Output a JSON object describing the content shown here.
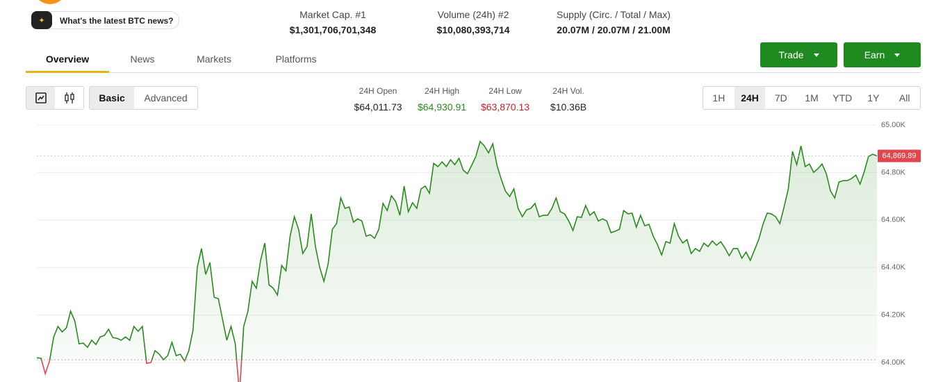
{
  "ask_prompt": "What's the latest BTC news?",
  "stats": [
    {
      "label": "Market Cap. #1",
      "value": "$1,301,706,701,348"
    },
    {
      "label": "Volume (24h) #2",
      "value": "$10,080,393,714"
    },
    {
      "label": "Supply (Circ. / Total / Max)",
      "value": "20.07M / 20.07M / 21.00M"
    }
  ],
  "tabs": [
    "Overview",
    "News",
    "Markets",
    "Platforms"
  ],
  "buttons": [
    "Trade",
    "Earn"
  ],
  "view_modes": [
    "Basic",
    "Advanced"
  ],
  "summary": [
    {
      "label": "24H Open",
      "value": 64011.73,
      "value_label": "$64,011.73"
    },
    {
      "label": "24H High",
      "value": 64930.91,
      "value_label": "$64,930.91"
    },
    {
      "label": "24H Low",
      "value": 63870.13,
      "value_label": "$63,870.13"
    },
    {
      "label": "24H Vol.",
      "value": 10360000000,
      "value_label": "$10.36B"
    }
  ],
  "ranges": [
    "1H",
    "24H",
    "7D",
    "1M",
    "YTD",
    "1Y",
    "All"
  ],
  "chart_data": {
    "type": "line",
    "color": "#2a8a1e",
    "down_color": "#e0464e",
    "ylim": [
      64000,
      65000
    ],
    "yticks": [
      {
        "value": 64000,
        "label": "64.00K"
      },
      {
        "value": 64200,
        "label": "64.20K"
      },
      {
        "value": 64400,
        "label": "64.40K"
      },
      {
        "value": 64600,
        "label": "64.60K"
      },
      {
        "value": 64800,
        "label": "64.80K"
      },
      {
        "value": 65000,
        "label": "65.00K"
      }
    ],
    "grid": true,
    "last_price": {
      "value": 64869.89,
      "label": "64,869.89"
    },
    "values": [
      64020,
      64018,
      63953,
      64006,
      64108,
      64152,
      64129,
      64146,
      64216,
      64175,
      64079,
      64082,
      64064,
      64094,
      64076,
      64108,
      64114,
      64140,
      64105,
      64102,
      64094,
      64108,
      64094,
      64152,
      64132,
      64152,
      63997,
      64000,
      64050,
      64035,
      64012,
      64029,
      64085,
      64029,
      64035,
      64006,
      64050,
      64137,
      64401,
      64480,
      64371,
      64421,
      64275,
      64269,
      64181,
      64094,
      64152,
      64079,
      63870.13,
      64152,
      64216,
      64342,
      64313,
      64430,
      64503,
      64327,
      64313,
      64284,
      64409,
      64386,
      64532,
      64614,
      64561,
      64459,
      64488,
      64626,
      64488,
      64401,
      64342,
      64415,
      64561,
      64585,
      64693,
      64649,
      64655,
      64591,
      64605,
      64596,
      64532,
      64538,
      64523,
      64561,
      64670,
      64640,
      64702,
      64678,
      64620,
      64743,
      64635,
      64673,
      64649,
      64731,
      64743,
      64713,
      64839,
      64825,
      64845,
      64825,
      64854,
      64833,
      64860,
      64810,
      64795,
      64830,
      64868,
      64930.91,
      64912,
      64883,
      64921,
      64830,
      64772,
      64722,
      64699,
      64731,
      64649,
      64614,
      64643,
      64649,
      64670,
      64614,
      64620,
      64620,
      64649,
      64693,
      64635,
      64626,
      64596,
      64556,
      64614,
      64611,
      64661,
      64620,
      64635,
      64596,
      64605,
      64596,
      64547,
      64553,
      64561,
      64640,
      64626,
      64629,
      64570,
      64620,
      64576,
      64582,
      64532,
      64497,
      64453,
      64509,
      64503,
      64585,
      64532,
      64503,
      64518,
      64459,
      64480,
      64468,
      64503,
      64488,
      64512,
      64494,
      64509,
      64482,
      64450,
      64480,
      64480,
      64439,
      64465,
      64430,
      64474,
      64518,
      64582,
      64629,
      64626,
      64614,
      64585,
      64655,
      64731,
      64889,
      64833,
      64912,
      64825,
      64836,
      64801,
      64816,
      64836,
      64795,
      64722,
      64693,
      64760,
      64766,
      64766,
      64775,
      64789,
      64751,
      64804,
      64868,
      64877,
      64869.89
    ]
  }
}
